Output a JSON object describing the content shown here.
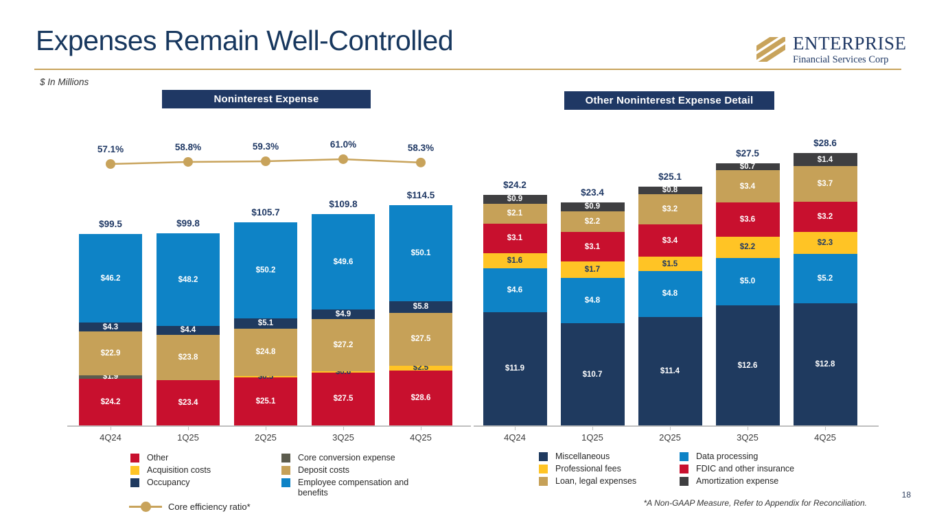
{
  "header": {
    "title": "Expenses Remain Well-Controlled",
    "units_note": "$ In Millions",
    "logo": {
      "name": "ENTERPRISE",
      "subtitle": "Financial Services Corp"
    }
  },
  "chart_data": [
    {
      "type": "bar",
      "stacked": true,
      "title": "Noninterest Expense",
      "categories": [
        "4Q24",
        "1Q25",
        "2Q25",
        "3Q25",
        "4Q25"
      ],
      "series": [
        {
          "name": "Other",
          "color": "#C8102E",
          "label_color": "#FFFFFF",
          "values": [
            24.2,
            23.4,
            25.1,
            27.5,
            28.6
          ]
        },
        {
          "name": "Acquisition costs",
          "color": "#FFC425",
          "label_color": "#1F3864",
          "values": [
            0,
            0,
            0.5,
            0.6,
            2.5
          ]
        },
        {
          "name": "Core conversion expense",
          "color": "#5C5C4E",
          "label_color": "#FFFFFF",
          "values": [
            1.9,
            0,
            0,
            0,
            0
          ]
        },
        {
          "name": "Deposit costs",
          "color": "#C6A158",
          "label_color": "#FFFFFF",
          "values": [
            22.9,
            23.8,
            24.8,
            27.2,
            27.5
          ]
        },
        {
          "name": "Occupancy",
          "color": "#1F3A5F",
          "label_color": "#FFFFFF",
          "values": [
            4.3,
            4.4,
            5.1,
            4.9,
            5.8
          ]
        },
        {
          "name": "Employee compensation and benefits",
          "color": "#0E83C6",
          "label_color": "#FFFFFF",
          "values": [
            46.2,
            48.2,
            50.2,
            49.6,
            50.1
          ]
        }
      ],
      "totals": [
        99.5,
        99.8,
        105.7,
        109.8,
        114.5
      ],
      "total_labels": [
        "$99.5",
        "$99.8",
        "$105.7",
        "$109.8",
        "$114.5"
      ],
      "line": {
        "name": "Core efficiency ratio*",
        "color": "#C8A35B",
        "values": [
          57.1,
          58.8,
          59.3,
          61.0,
          58.3
        ],
        "labels": [
          "57.1%",
          "58.8%",
          "59.3%",
          "61.0%",
          "58.3%"
        ]
      },
      "legend": {
        "columns": [
          [
            {
              "label": "Other",
              "color": "#C8102E"
            },
            {
              "label": "Acquisition costs",
              "color": "#FFC425"
            },
            {
              "label": "Occupancy",
              "color": "#1F3A5F"
            }
          ],
          [
            {
              "label": "Core conversion expense",
              "color": "#5C5C4E"
            },
            {
              "label": "Deposit costs",
              "color": "#C6A158"
            },
            {
              "label": "Employee compensation and benefits",
              "color": "#0E83C6"
            }
          ]
        ],
        "line_label": "Core efficiency ratio*"
      }
    },
    {
      "type": "bar",
      "stacked": true,
      "title": "Other Noninterest Expense Detail",
      "categories": [
        "4Q24",
        "1Q25",
        "2Q25",
        "3Q25",
        "4Q25"
      ],
      "series": [
        {
          "name": "Miscellaneous",
          "color": "#1F3A5F",
          "label_color": "#FFFFFF",
          "values": [
            11.9,
            10.7,
            11.4,
            12.6,
            12.8
          ]
        },
        {
          "name": "Data processing",
          "color": "#0E83C6",
          "label_color": "#FFFFFF",
          "values": [
            4.6,
            4.8,
            4.8,
            5.0,
            5.2
          ]
        },
        {
          "name": "Professional fees",
          "color": "#FFC425",
          "label_color": "#1F3864",
          "values": [
            1.6,
            1.7,
            1.5,
            2.2,
            2.3
          ]
        },
        {
          "name": "FDIC and other insurance",
          "color": "#C8102E",
          "label_color": "#FFFFFF",
          "values": [
            3.1,
            3.1,
            3.4,
            3.6,
            3.2
          ]
        },
        {
          "name": "Loan, legal expenses",
          "color": "#C6A158",
          "label_color": "#FFFFFF",
          "values": [
            2.1,
            2.2,
            3.2,
            3.4,
            3.7
          ]
        },
        {
          "name": "Amortization expense",
          "color": "#3F3F41",
          "label_color": "#FFFFFF",
          "values": [
            0.9,
            0.9,
            0.8,
            0.7,
            1.4
          ]
        }
      ],
      "totals": [
        24.2,
        23.4,
        25.1,
        27.5,
        28.6
      ],
      "total_labels": [
        "$24.2",
        "$23.4",
        "$25.1",
        "$27.5",
        "$28.6"
      ],
      "legend": {
        "columns": [
          [
            {
              "label": "Miscellaneous",
              "color": "#1F3A5F"
            },
            {
              "label": "Professional fees",
              "color": "#FFC425"
            },
            {
              "label": "Loan, legal expenses",
              "color": "#C6A158"
            }
          ],
          [
            {
              "label": "Data processing",
              "color": "#0E83C6"
            },
            {
              "label": "FDIC and other insurance",
              "color": "#C8102E"
            },
            {
              "label": "Amortization expense",
              "color": "#3F3F41"
            }
          ]
        ]
      }
    }
  ],
  "footnote": "*A Non-GAAP Measure, Refer to Appendix for Reconciliation.",
  "page_number": "18"
}
